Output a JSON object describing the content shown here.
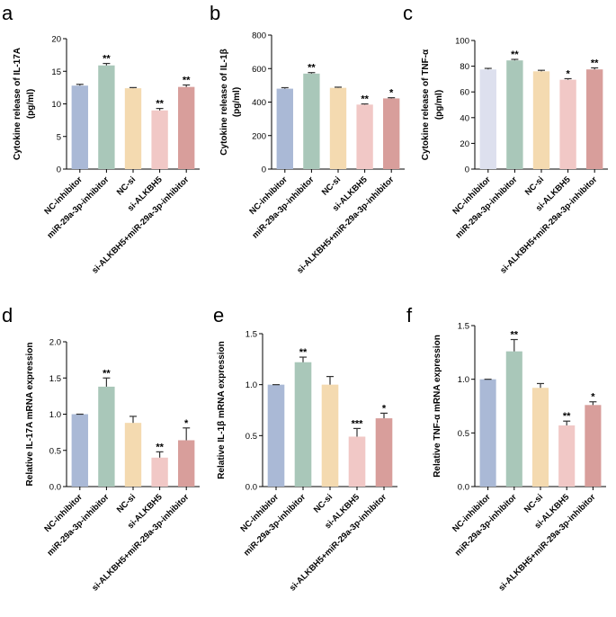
{
  "chart_data": [
    {
      "panel": "a",
      "type": "bar",
      "ylabel": "Cytokine release of IL-17A",
      "ylabel_unit": "(pg/ml)",
      "ylim": [
        0,
        20
      ],
      "yticks": [
        0,
        5,
        10,
        15,
        20
      ],
      "ytick_labels": [
        "0",
        "5",
        "10",
        "15",
        "20"
      ],
      "categories": [
        "NC-inhibitor",
        "miR-29a-3p-inhibitor",
        "NC-si",
        "si-ALKBH5",
        "si-ALKBH5+miR-29a-3p-inhibitor"
      ],
      "values": [
        12.8,
        15.9,
        12.4,
        9.0,
        12.6
      ],
      "errors": [
        0.2,
        0.3,
        0.1,
        0.3,
        0.3
      ],
      "significance": [
        "",
        "**",
        "",
        "**",
        "**"
      ],
      "colors": [
        "#aab9d6",
        "#a9c7b9",
        "#f4dab0",
        "#f1c8c6",
        "#d89e9b"
      ]
    },
    {
      "panel": "b",
      "type": "bar",
      "ylabel": "Cytokine release of IL-1β",
      "ylabel_unit": "(pg/ml)",
      "ylim": [
        0,
        800
      ],
      "yticks": [
        0,
        200,
        400,
        600,
        800
      ],
      "ytick_labels": [
        "0",
        "200",
        "400",
        "600",
        "800"
      ],
      "categories": [
        "NC-inhibitor",
        "miR-29a-3p-inhibitor",
        "NC-si",
        "si-ALKBH5",
        "si-ALKBH5+miR-29a-3p-inhibitor"
      ],
      "values": [
        480,
        570,
        485,
        385,
        422
      ],
      "errors": [
        6,
        6,
        4,
        4,
        4
      ],
      "significance": [
        "",
        "**",
        "",
        "**",
        "*"
      ],
      "colors": [
        "#aab9d6",
        "#a9c7b9",
        "#f4dab0",
        "#f1c8c6",
        "#d89e9b"
      ]
    },
    {
      "panel": "c",
      "type": "bar",
      "ylabel": "Cytokine release of TNF-α",
      "ylabel_unit": "(pg/ml)",
      "ylim": [
        0,
        100
      ],
      "yticks": [
        0,
        20,
        40,
        60,
        80,
        100
      ],
      "ytick_labels": [
        "0",
        "20",
        "40",
        "60",
        "80",
        "100"
      ],
      "categories": [
        "NC-inhibitor",
        "miR-29a-3p-inhibitor",
        "NC-si",
        "si-ALKBH5",
        "si-ALKBH5+miR-29a-3p-inhibitor"
      ],
      "values": [
        77.5,
        84.5,
        76,
        69.5,
        77.5
      ],
      "errors": [
        0.8,
        0.8,
        0.8,
        0.8,
        1.2
      ],
      "significance": [
        "",
        "**",
        "",
        "*",
        "**"
      ],
      "colors": [
        "#dde0ee",
        "#a9c7b9",
        "#f4dab0",
        "#f1c8c6",
        "#d89e9b"
      ]
    },
    {
      "panel": "d",
      "type": "bar",
      "ylabel": "Relative IL-17A mRNA expression",
      "ylabel_unit": "",
      "ylim": [
        0,
        2.0
      ],
      "yticks": [
        0,
        0.5,
        1.0,
        1.5,
        2.0
      ],
      "ytick_labels": [
        "0.0",
        "0.5",
        "1.0",
        "1.5",
        "2.0"
      ],
      "categories": [
        "NC-inhibitor",
        "miR-29a-3p-inhibitor",
        "NC-si",
        "si-ALKBH5",
        "si-ALKBH5+miR-29a-3p-inhibitor"
      ],
      "values": [
        1.0,
        1.38,
        0.88,
        0.4,
        0.64
      ],
      "errors": [
        0,
        0.12,
        0.09,
        0.08,
        0.17
      ],
      "significance": [
        "",
        "**",
        "",
        "**",
        "*"
      ],
      "colors": [
        "#aab9d6",
        "#a9c7b9",
        "#f4dab0",
        "#f1c8c6",
        "#d89e9b"
      ]
    },
    {
      "panel": "e",
      "type": "bar",
      "ylabel": "Relative IL-1β mRNA expression",
      "ylabel_unit": "",
      "ylim": [
        0,
        1.5
      ],
      "yticks": [
        0,
        0.5,
        1.0,
        1.5
      ],
      "ytick_labels": [
        "0.0",
        "0.5",
        "1.0",
        "1.5"
      ],
      "categories": [
        "NC-inhibitor",
        "miR-29a-3p-inhibitor",
        "NC-si",
        "si-ALKBH5",
        "si-ALKBH5+miR-29a-3p-inhibitor"
      ],
      "values": [
        1.0,
        1.22,
        1.0,
        0.49,
        0.67
      ],
      "errors": [
        0,
        0.05,
        0.08,
        0.08,
        0.05
      ],
      "significance": [
        "",
        "**",
        "",
        "***",
        "*"
      ],
      "colors": [
        "#aab9d6",
        "#a9c7b9",
        "#f4dab0",
        "#f1c8c6",
        "#d89e9b"
      ]
    },
    {
      "panel": "f",
      "type": "bar",
      "ylabel": "Relative TNF-α mRNA expression",
      "ylabel_unit": "",
      "ylim": [
        0,
        1.5
      ],
      "yticks": [
        0,
        0.5,
        1.0,
        1.5
      ],
      "ytick_labels": [
        "0.0",
        "0.5",
        "1.0",
        "1.5"
      ],
      "categories": [
        "NC-inhibitor",
        "miR-29a-3p-inhibitor",
        "NC-si",
        "si-ALKBH5",
        "si-ALKBH5+miR-29a-3p-inhibitor"
      ],
      "values": [
        1.0,
        1.26,
        0.92,
        0.57,
        0.76
      ],
      "errors": [
        0,
        0.11,
        0.04,
        0.04,
        0.03
      ],
      "significance": [
        "",
        "**",
        "",
        "**",
        "*"
      ],
      "colors": [
        "#aab9d6",
        "#a9c7b9",
        "#f4dab0",
        "#f1c8c6",
        "#d89e9b"
      ]
    }
  ]
}
